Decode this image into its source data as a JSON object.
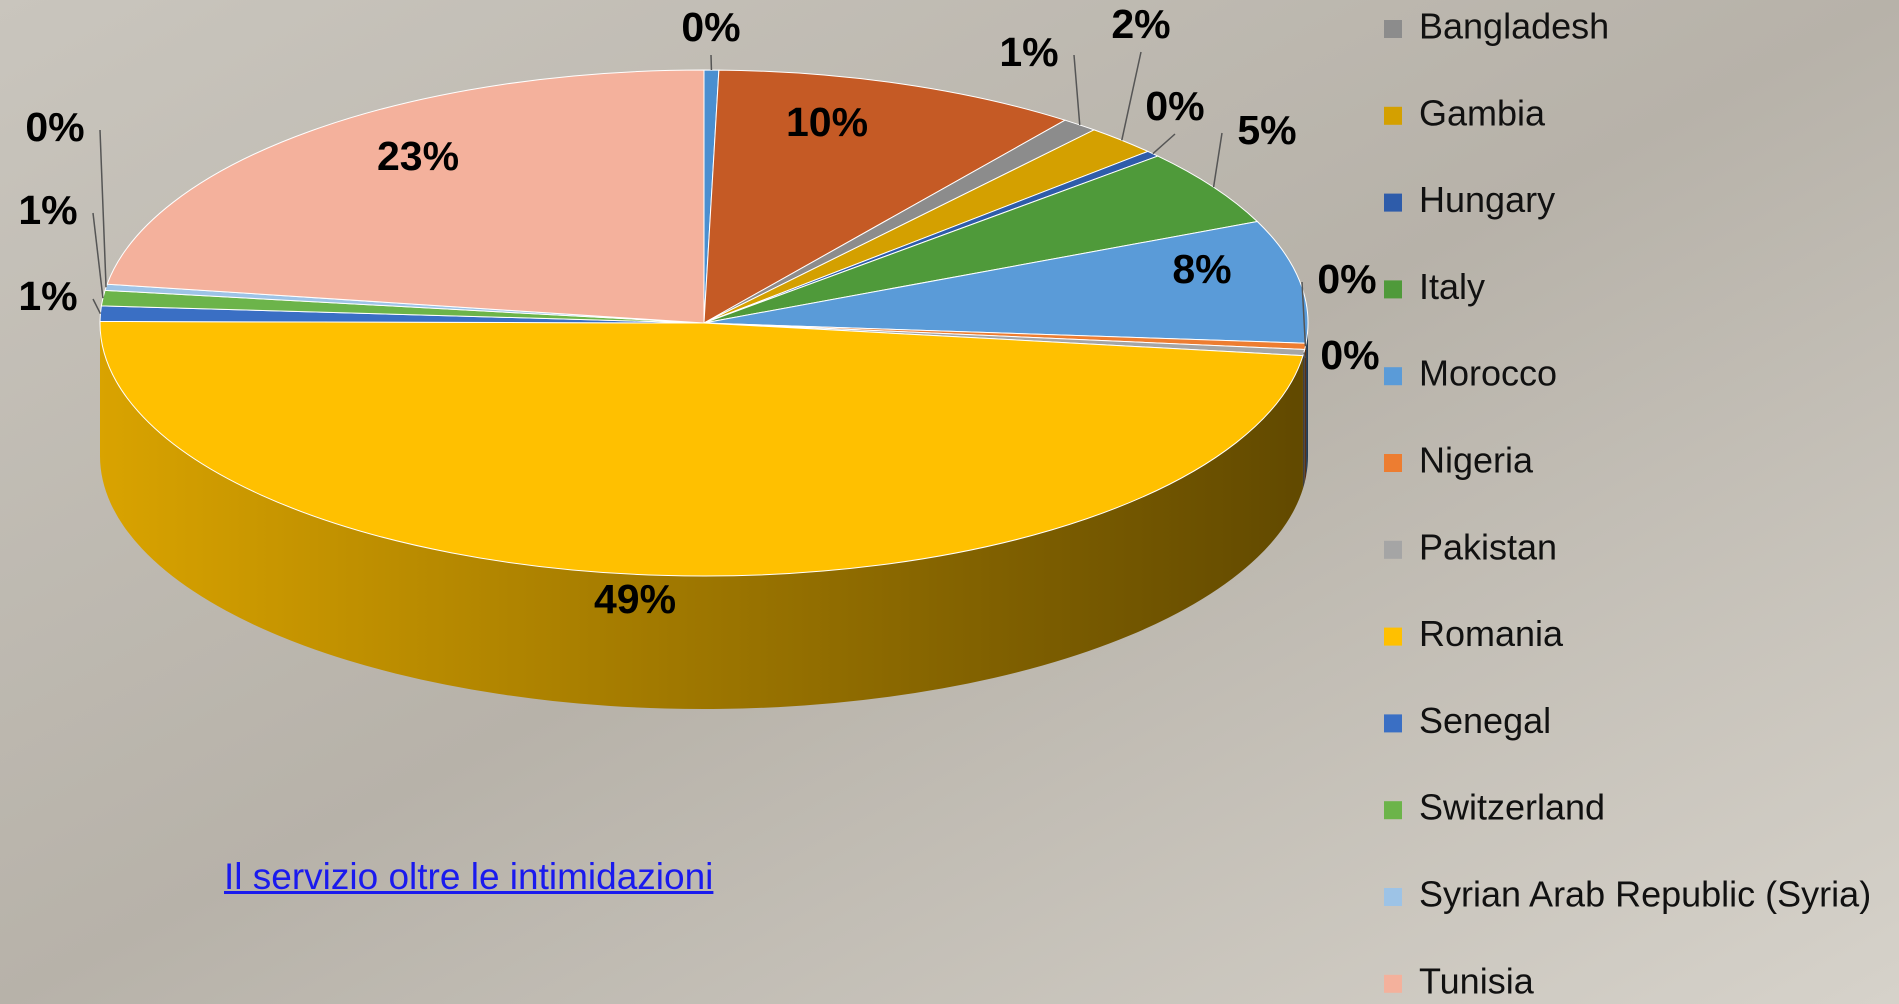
{
  "chart_data": {
    "type": "pie",
    "categories": [
      null,
      null,
      "Bangladesh",
      "Gambia",
      "Hungary",
      "Italy",
      "Morocco",
      "Nigeria",
      "Pakistan",
      "Romania",
      "Senegal",
      "Switzerland",
      "Syrian Arab Republic (Syria)",
      "Tunisia"
    ],
    "values": [
      0.4,
      10,
      1,
      2,
      0.4,
      5,
      8,
      0.4,
      0.4,
      49,
      1,
      1,
      0.4,
      23
    ],
    "value_labels": [
      "0%",
      "10%",
      "1%",
      "2%",
      "0%",
      "5%",
      "8%",
      "0%",
      "0%",
      "49%",
      "1%",
      "1%",
      "0%",
      "23%"
    ],
    "colors": [
      "#4a8fd0",
      "#c55a25",
      "#8c8c8c",
      "#d4a000",
      "#2e5caa",
      "#4f9a3a",
      "#5a9bd8",
      "#ed7d31",
      "#a5a5a5",
      "#ffc000",
      "#3a6fc4",
      "#6cb44a",
      "#9dc3e6",
      "#f4b19c"
    ],
    "legend": "right"
  },
  "link_text": "Il servizio oltre le intimidazioni"
}
